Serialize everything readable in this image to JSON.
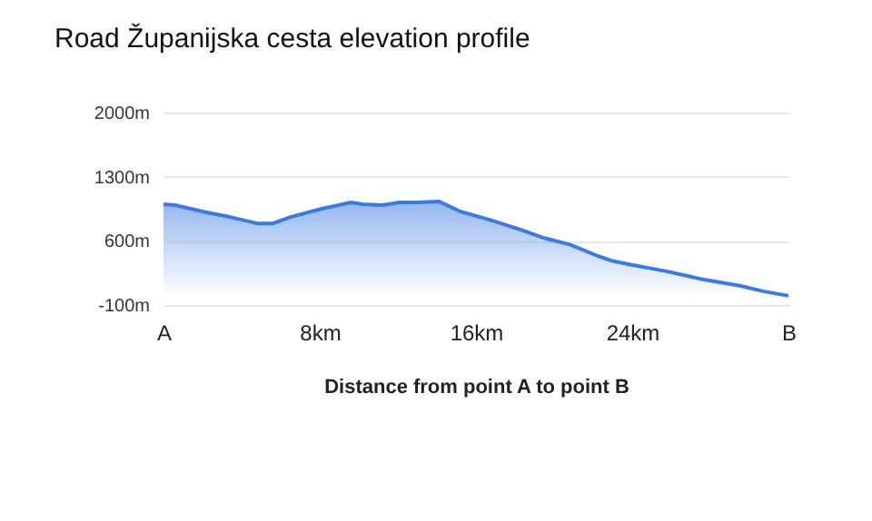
{
  "chart_data": {
    "type": "area",
    "title": "Road Županijska cesta elevation profile",
    "xlabel": "Distance from point A to point B",
    "x": [
      0,
      0.6,
      2.2,
      3.4,
      4.8,
      5.6,
      6.5,
      8.1,
      9.6,
      10.2,
      11.2,
      12.1,
      13.0,
      14.1,
      15.2,
      16.7,
      18.3,
      19.5,
      20.8,
      22.3,
      23.0,
      23.9,
      25.7,
      27.6,
      29.5,
      30.7,
      32
    ],
    "series": [
      {
        "color": "#3b7be0",
        "values": [
          1000,
          990,
          910,
          860,
          790,
          790,
          860,
          950,
          1020,
          1000,
          990,
          1020,
          1020,
          1030,
          920,
          830,
          720,
          630,
          560,
          430,
          380,
          340,
          270,
          180,
          110,
          50,
          0
        ]
      }
    ],
    "xlim": [
      0,
      32
    ],
    "xticks": [
      {
        "value": 0,
        "label": "A"
      },
      {
        "value": 8,
        "label": "8km"
      },
      {
        "value": 16,
        "label": "16km"
      },
      {
        "value": 24,
        "label": "24km"
      },
      {
        "value": 32,
        "label": "B"
      }
    ],
    "ylim": [
      -100,
      2000
    ],
    "yticks": [
      {
        "value": -100,
        "label": "-100m"
      },
      {
        "value": 600,
        "label": "600m"
      },
      {
        "value": 1300,
        "label": "1300m"
      },
      {
        "value": 2000,
        "label": "2000m"
      }
    ],
    "grid": "y"
  }
}
